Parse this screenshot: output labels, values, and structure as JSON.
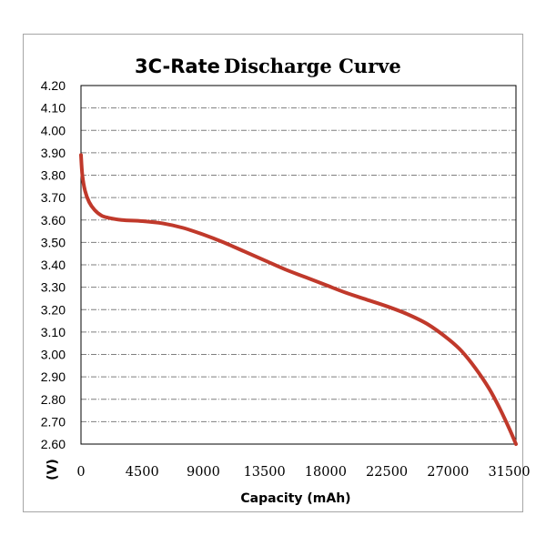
{
  "chart_data": {
    "type": "line",
    "title_part1": "3C-Rate",
    "title_part2": "Discharge Curve",
    "xlabel": "Capacity (mAh)",
    "ylabel": "(V)",
    "xlim": [
      0,
      32000
    ],
    "ylim": [
      2.6,
      4.2
    ],
    "xticks": [
      0,
      4500,
      9000,
      13500,
      18000,
      22500,
      27000,
      31500
    ],
    "yticks": [
      "2.60",
      "2.70",
      "2.80",
      "2.90",
      "3.00",
      "3.10",
      "3.20",
      "3.30",
      "3.40",
      "3.50",
      "3.60",
      "3.70",
      "3.80",
      "3.90",
      "4.00",
      "4.10",
      "4.20"
    ],
    "grid": true,
    "line_color": "#c0392b",
    "series": [
      {
        "x": [
          0,
          100,
          300,
          600,
          1000,
          1500,
          2000,
          3000,
          4500,
          6000,
          7500,
          9000,
          10500,
          12000,
          13500,
          15000,
          16500,
          18000,
          19500,
          21000,
          22500,
          24000,
          25500,
          27000,
          28000,
          29000,
          30000,
          30800,
          31500,
          32000
        ],
        "y": [
          3.89,
          3.8,
          3.73,
          3.68,
          3.645,
          3.62,
          3.61,
          3.6,
          3.595,
          3.585,
          3.565,
          3.535,
          3.5,
          3.46,
          3.42,
          3.38,
          3.345,
          3.31,
          3.275,
          3.245,
          3.215,
          3.18,
          3.135,
          3.07,
          3.015,
          2.94,
          2.85,
          2.76,
          2.67,
          2.6
        ]
      }
    ]
  }
}
